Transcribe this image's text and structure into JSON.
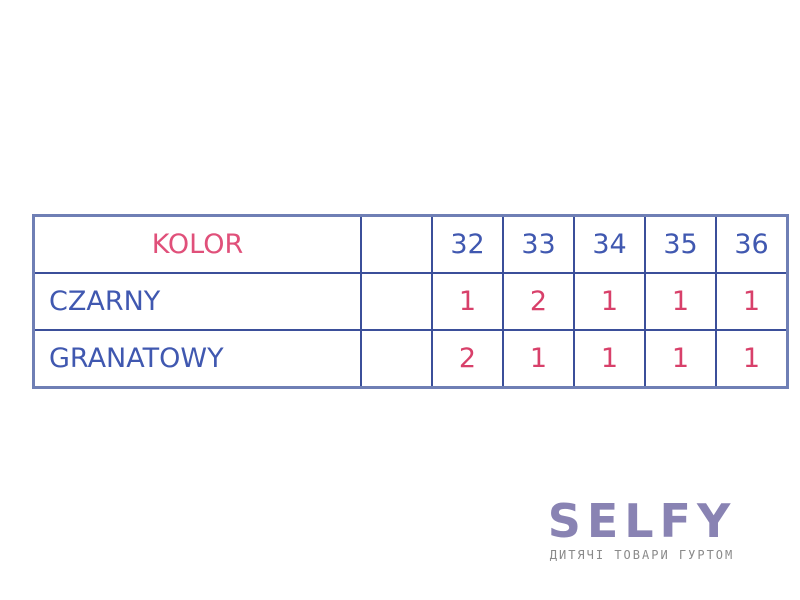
{
  "table": {
    "header": {
      "label": "KOLOR",
      "sizes": [
        "32",
        "33",
        "34",
        "35",
        "36"
      ]
    },
    "rows": [
      {
        "color": "CZARNY",
        "quantities": [
          "1",
          "2",
          "1",
          "1",
          "1"
        ]
      },
      {
        "color": "GRANATOWY",
        "quantities": [
          "2",
          "1",
          "1",
          "1",
          "1"
        ]
      }
    ]
  },
  "logo": {
    "brand": "SELFY",
    "tagline": "ДИТЯЧІ ТОВАРИ ГУРТОМ"
  },
  "colors": {
    "border": "#3b4f9a",
    "header_text": "#e0507a",
    "label_text": "#4058b0",
    "quantity_text": "#d8406a",
    "logo": "#8983b3"
  }
}
